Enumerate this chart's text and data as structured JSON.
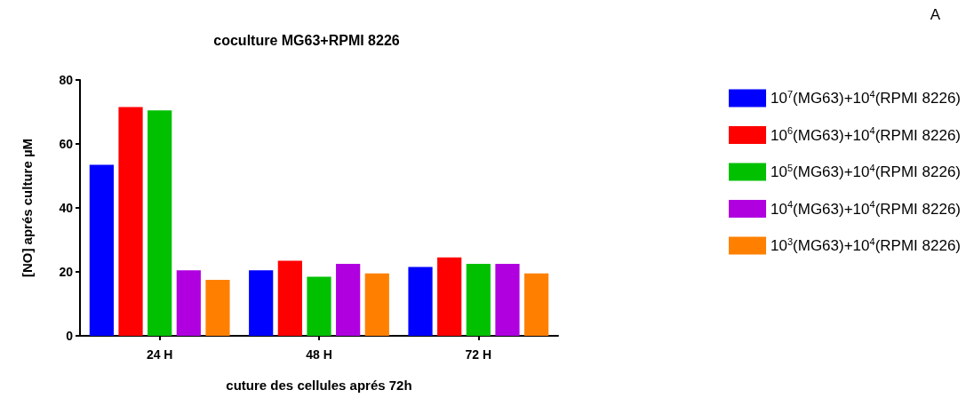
{
  "chart_data": {
    "type": "bar",
    "title": "coculture MG63+RPMI 8226",
    "xlabel": "cuture des cellules aprés 72h",
    "ylabel": "[NO] aprés culture µM",
    "annotations": [
      "A"
    ],
    "categories": [
      "24 H",
      "48 H",
      "72 H"
    ],
    "series": [
      {
        "name": "10$^{7}$(MG63)+10$^{4}$(RPMI 8226)",
        "color": "#0000ff",
        "values": [
          53.5,
          20.5,
          21.5
        ]
      },
      {
        "name": "10$^{6}$(MG63)+10$^{4}$(RPMI 8226)",
        "color": "#ff0000",
        "values": [
          71.5,
          23.5,
          24.5
        ]
      },
      {
        "name": "10$^{5}$(MG63)+10$^{4}$(RPMI 8226)",
        "color": "#00c000",
        "values": [
          70.5,
          18.5,
          22.5
        ]
      },
      {
        "name": "10$^{4}$(MG63)+10$^{4}$(RPMI 8226)",
        "color": "#b000e0",
        "values": [
          20.5,
          22.5,
          22.5
        ]
      },
      {
        "name": "10$^{3}$(MG63)+10$^{4}$(RPMI 8226)",
        "color": "#ff8000",
        "values": [
          17.5,
          19.5,
          19.5
        ]
      }
    ],
    "ylim": [
      0,
      80
    ],
    "yticks": [
      0,
      20,
      40,
      60,
      80
    ],
    "grid": false,
    "legend": "right"
  }
}
